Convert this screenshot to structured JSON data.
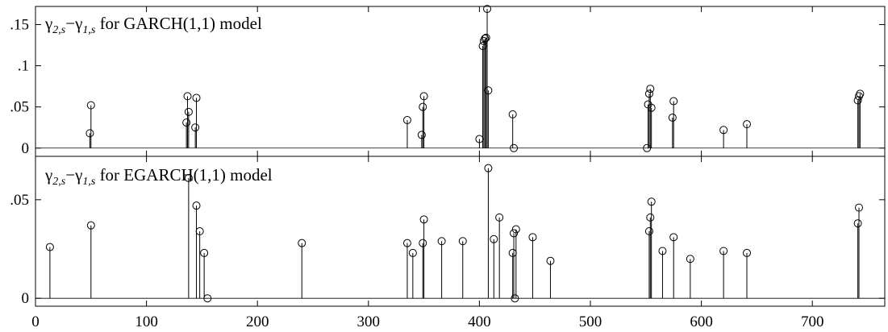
{
  "chart_data": [
    {
      "type": "scatter",
      "style": "stem",
      "title_parts": {
        "g1": "γ",
        "s1": "2,",
        "i1": "s",
        "minus": "−",
        "g2": "γ",
        "s2": "1,",
        "i2": "s",
        "rest": " for GARCH(1,1) model"
      },
      "ylim": [
        -0.01,
        0.172
      ],
      "yticks": [
        0,
        0.05,
        0.1,
        0.15
      ],
      "ytick_labels": [
        "0",
        ".05",
        ".1",
        ".15"
      ],
      "xlim": [
        0,
        765
      ],
      "xticks": [
        0,
        100,
        200,
        300,
        400,
        500,
        600,
        700
      ],
      "points": [
        {
          "x": 49,
          "y": 0.018
        },
        {
          "x": 50,
          "y": 0.052
        },
        {
          "x": 136,
          "y": 0.031
        },
        {
          "x": 137,
          "y": 0.063
        },
        {
          "x": 138,
          "y": 0.044
        },
        {
          "x": 144,
          "y": 0.025
        },
        {
          "x": 145,
          "y": 0.061
        },
        {
          "x": 335,
          "y": 0.034
        },
        {
          "x": 348,
          "y": 0.016
        },
        {
          "x": 349,
          "y": 0.05
        },
        {
          "x": 350,
          "y": 0.063
        },
        {
          "x": 400,
          "y": 0.011
        },
        {
          "x": 403,
          "y": 0.124
        },
        {
          "x": 404,
          "y": 0.13
        },
        {
          "x": 405,
          "y": 0.133
        },
        {
          "x": 406,
          "y": 0.134
        },
        {
          "x": 407,
          "y": 0.169
        },
        {
          "x": 408,
          "y": 0.07
        },
        {
          "x": 430,
          "y": 0.041
        },
        {
          "x": 431,
          "y": 0.0
        },
        {
          "x": 551,
          "y": 0.0
        },
        {
          "x": 552,
          "y": 0.053
        },
        {
          "x": 553,
          "y": 0.066
        },
        {
          "x": 554,
          "y": 0.072
        },
        {
          "x": 555,
          "y": 0.049
        },
        {
          "x": 574,
          "y": 0.037
        },
        {
          "x": 575,
          "y": 0.057
        },
        {
          "x": 620,
          "y": 0.022
        },
        {
          "x": 641,
          "y": 0.029
        },
        {
          "x": 741,
          "y": 0.058
        },
        {
          "x": 742,
          "y": 0.063
        },
        {
          "x": 743,
          "y": 0.066
        }
      ]
    },
    {
      "type": "scatter",
      "style": "stem",
      "title_parts": {
        "g1": "γ",
        "s1": "2,",
        "i1": "s",
        "minus": "−",
        "g2": "γ",
        "s2": "1,",
        "i2": "s",
        "rest": " for EGARCH(1,1) model"
      },
      "ylim": [
        -0.004,
        0.072
      ],
      "yticks": [
        0,
        0.05
      ],
      "ytick_labels": [
        "0",
        ".05"
      ],
      "xlim": [
        0,
        765
      ],
      "xticks": [
        0,
        100,
        200,
        300,
        400,
        500,
        600,
        700
      ],
      "xtick_labels": [
        "0",
        "100",
        "200",
        "300",
        "400",
        "500",
        "600",
        "700"
      ],
      "points": [
        {
          "x": 13,
          "y": 0.026
        },
        {
          "x": 50,
          "y": 0.037
        },
        {
          "x": 138,
          "y": 0.061
        },
        {
          "x": 145,
          "y": 0.047
        },
        {
          "x": 148,
          "y": 0.034
        },
        {
          "x": 152,
          "y": 0.023
        },
        {
          "x": 155,
          "y": 0.0
        },
        {
          "x": 240,
          "y": 0.028
        },
        {
          "x": 335,
          "y": 0.028
        },
        {
          "x": 340,
          "y": 0.023
        },
        {
          "x": 349,
          "y": 0.028
        },
        {
          "x": 350,
          "y": 0.04
        },
        {
          "x": 366,
          "y": 0.029
        },
        {
          "x": 385,
          "y": 0.029
        },
        {
          "x": 408,
          "y": 0.066
        },
        {
          "x": 413,
          "y": 0.03
        },
        {
          "x": 418,
          "y": 0.041
        },
        {
          "x": 430,
          "y": 0.023
        },
        {
          "x": 431,
          "y": 0.033
        },
        {
          "x": 432,
          "y": 0.0
        },
        {
          "x": 433,
          "y": 0.035
        },
        {
          "x": 448,
          "y": 0.031
        },
        {
          "x": 464,
          "y": 0.019
        },
        {
          "x": 553,
          "y": 0.034
        },
        {
          "x": 554,
          "y": 0.041
        },
        {
          "x": 555,
          "y": 0.049
        },
        {
          "x": 565,
          "y": 0.024
        },
        {
          "x": 575,
          "y": 0.031
        },
        {
          "x": 590,
          "y": 0.02
        },
        {
          "x": 620,
          "y": 0.024
        },
        {
          "x": 641,
          "y": 0.023
        },
        {
          "x": 741,
          "y": 0.038
        },
        {
          "x": 742,
          "y": 0.046
        }
      ]
    }
  ]
}
